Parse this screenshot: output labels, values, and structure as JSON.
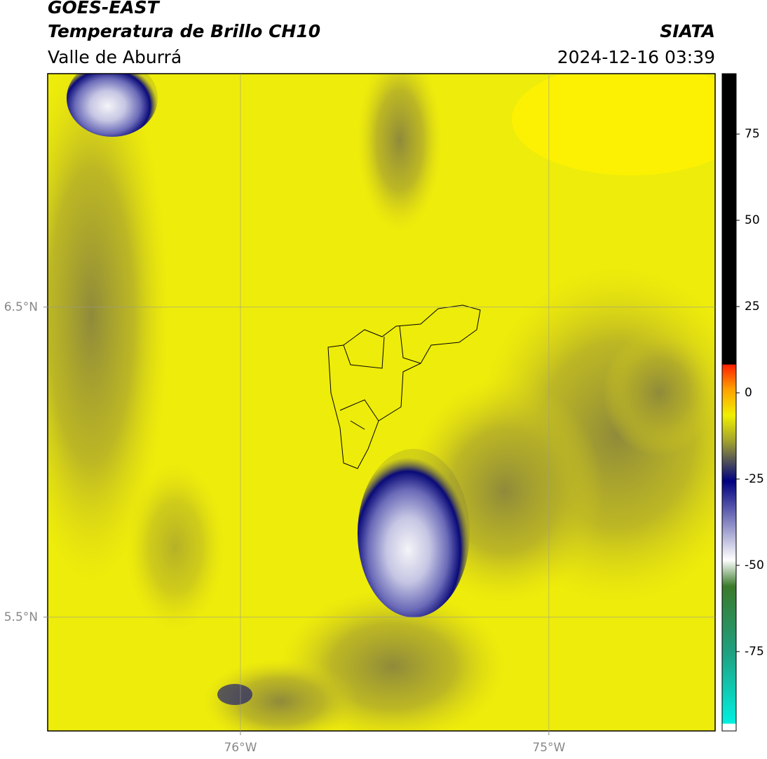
{
  "header": {
    "title": "GOES-EAST",
    "subtitle": "Temperatura de Brillo CH10",
    "region": "Valle de Aburrá",
    "source": "SIATA",
    "datetime": "2024-12-16 03:39"
  },
  "map": {
    "xlim": [
      -76.625,
      -74.461
    ],
    "ylim": [
      5.133,
      7.253
    ],
    "lat_ticks": [
      {
        "value": 6.5,
        "label": "6.5°N"
      },
      {
        "value": 5.5,
        "label": "5.5°N"
      }
    ],
    "lon_ticks": [
      {
        "value": -76,
        "label": "76°W"
      },
      {
        "value": -75,
        "label": "75°W"
      }
    ],
    "grid": true
  },
  "colorbar": {
    "lim": [
      -98,
      92.5
    ],
    "ticks": [
      75,
      50,
      25,
      0,
      -25,
      -50,
      -75
    ]
  }
}
